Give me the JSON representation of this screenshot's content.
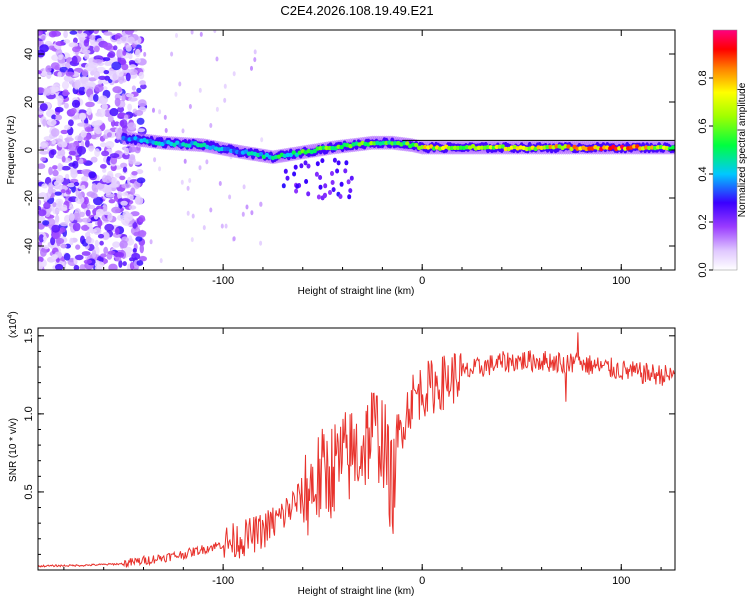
{
  "figure_title": "C2E4.2026.108.19.49.E21",
  "chart_data": [
    {
      "type": "heatmap",
      "name": "spectrogram",
      "xlabel": "Height of straight line (km)",
      "ylabel": "Frequency (Hz)",
      "xlim": [
        -193,
        127
      ],
      "ylim": [
        -50,
        50
      ],
      "xticks": [
        -100,
        0,
        100
      ],
      "xtick_labels": [
        "-100",
        "0",
        "100"
      ],
      "yticks": [
        -40,
        -20,
        0,
        20,
        40
      ],
      "ytick_labels": [
        "-40",
        "-20",
        "0",
        "20",
        "40"
      ],
      "reference_line": {
        "y": 4
      },
      "colorbar": {
        "label": "Normalized spectral amplitude",
        "range": [
          0,
          1
        ],
        "ticks": [
          0.0,
          0.2,
          0.4,
          0.6,
          0.8
        ],
        "tick_labels": [
          "0.0",
          "0.2",
          "0.4",
          "0.6",
          "0.8"
        ]
      },
      "ridge": {
        "x": [
          -150,
          -130,
          -110,
          -90,
          -75,
          -60,
          -45,
          -35,
          -25,
          -15,
          -5,
          0,
          20,
          40,
          60,
          80,
          100,
          127
        ],
        "y": [
          5,
          3,
          2,
          -1,
          -3,
          -1,
          1,
          2,
          3,
          3,
          2,
          1,
          1,
          1,
          1,
          1,
          1,
          1
        ],
        "amplitude": [
          0.35,
          0.45,
          0.45,
          0.4,
          0.5,
          0.55,
          0.6,
          0.6,
          0.6,
          0.55,
          0.6,
          0.75,
          0.7,
          0.7,
          0.75,
          0.8,
          0.95,
          0.6
        ]
      }
    },
    {
      "type": "line",
      "name": "snr",
      "xlabel": "Height of straight line (km)",
      "ylabel": "SNR (10 * v/v)",
      "y_multiplier": "(x10",
      "y_multiplier_exp": "4",
      "y_multiplier_close": ")",
      "xlim": [
        -193,
        127
      ],
      "ylim": [
        0,
        15500
      ],
      "xticks": [
        -100,
        0,
        100
      ],
      "xtick_labels": [
        "-100",
        "0",
        "100"
      ],
      "yticks": [
        5000,
        10000,
        15000
      ],
      "ytick_labels": [
        "0.5",
        "1.0",
        "1.5"
      ],
      "color": "#e8322c",
      "series": [
        {
          "name": "SNR",
          "x": [
            -193,
            -170,
            -150,
            -135,
            -120,
            -105,
            -90,
            -80,
            -70,
            -60,
            -50,
            -40,
            -30,
            -25,
            -20,
            -15,
            -10,
            -5,
            0,
            10,
            20,
            30,
            40,
            50,
            60,
            70,
            80,
            90,
            100,
            110,
            120,
            127
          ],
          "y": [
            250,
            300,
            400,
            700,
            1000,
            1500,
            2000,
            2500,
            3500,
            4800,
            6000,
            7000,
            7800,
            9000,
            8500,
            5000,
            9500,
            11000,
            11500,
            12000,
            12600,
            13000,
            13300,
            13400,
            13400,
            13300,
            13200,
            13000,
            12800,
            12600,
            12500,
            12400
          ]
        }
      ]
    }
  ]
}
